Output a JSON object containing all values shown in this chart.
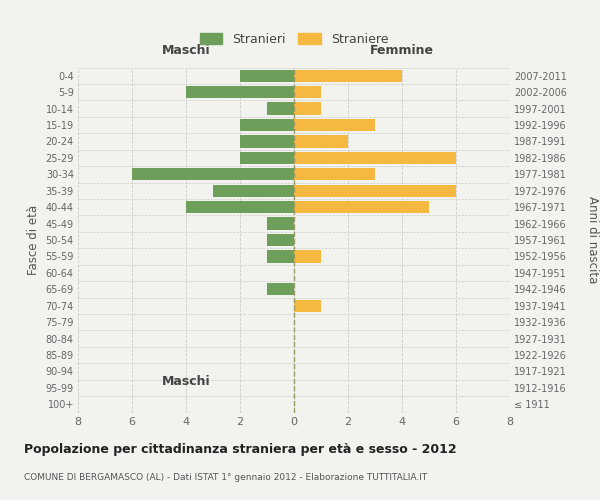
{
  "age_groups": [
    "100+",
    "95-99",
    "90-94",
    "85-89",
    "80-84",
    "75-79",
    "70-74",
    "65-69",
    "60-64",
    "55-59",
    "50-54",
    "45-49",
    "40-44",
    "35-39",
    "30-34",
    "25-29",
    "20-24",
    "15-19",
    "10-14",
    "5-9",
    "0-4"
  ],
  "birth_years": [
    "≤ 1911",
    "1912-1916",
    "1917-1921",
    "1922-1926",
    "1927-1931",
    "1932-1936",
    "1937-1941",
    "1942-1946",
    "1947-1951",
    "1952-1956",
    "1957-1961",
    "1962-1966",
    "1967-1971",
    "1972-1976",
    "1977-1981",
    "1982-1986",
    "1987-1991",
    "1992-1996",
    "1997-2001",
    "2002-2006",
    "2007-2011"
  ],
  "maschi": [
    0,
    0,
    0,
    0,
    0,
    0,
    0,
    1,
    0,
    1,
    1,
    1,
    4,
    3,
    6,
    2,
    2,
    2,
    1,
    4,
    2
  ],
  "femmine": [
    0,
    0,
    0,
    0,
    0,
    0,
    1,
    0,
    0,
    1,
    0,
    0,
    5,
    6,
    3,
    6,
    2,
    3,
    1,
    1,
    4
  ],
  "maschi_color": "#6d9e5a",
  "femmine_color": "#f5b942",
  "background_color": "#f2f2ee",
  "grid_color": "#cccccc",
  "title": "Popolazione per cittadinanza straniera per età e sesso - 2012",
  "subtitle": "COMUNE DI BERGAMASCO (AL) - Dati ISTAT 1° gennaio 2012 - Elaborazione TUTTITALIA.IT",
  "xlabel_left": "Maschi",
  "xlabel_right": "Femmine",
  "ylabel_left": "Fasce di età",
  "ylabel_right": "Anni di nascita",
  "legend_maschi": "Stranieri",
  "legend_femmine": "Straniere",
  "xlim": 8,
  "bar_height": 0.75
}
